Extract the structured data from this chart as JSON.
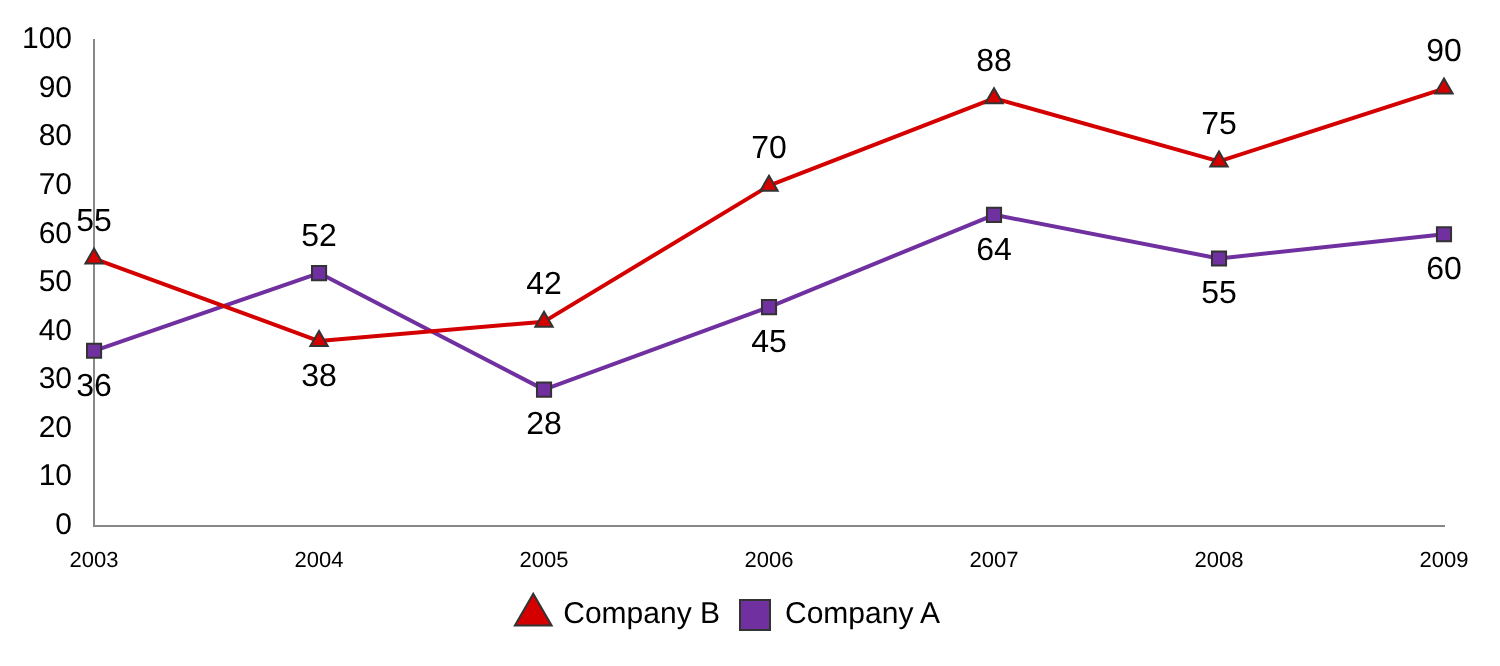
{
  "chart_data": {
    "type": "line",
    "categories": [
      "2003",
      "2004",
      "2005",
      "2006",
      "2007",
      "2008",
      "2009"
    ],
    "series": [
      {
        "name": "Company B",
        "color": "#d40000",
        "marker": "triangle",
        "values": [
          55,
          38,
          42,
          70,
          88,
          75,
          90
        ]
      },
      {
        "name": "Company A",
        "color": "#7030a0",
        "marker": "square",
        "values": [
          36,
          52,
          28,
          45,
          64,
          55,
          60
        ]
      }
    ],
    "ylim": [
      0,
      100
    ],
    "yticks": [
      0,
      10,
      20,
      30,
      40,
      50,
      60,
      70,
      80,
      90,
      100
    ],
    "grid": false,
    "legend": "bottom",
    "data_labels": true,
    "line_style": "solid"
  }
}
